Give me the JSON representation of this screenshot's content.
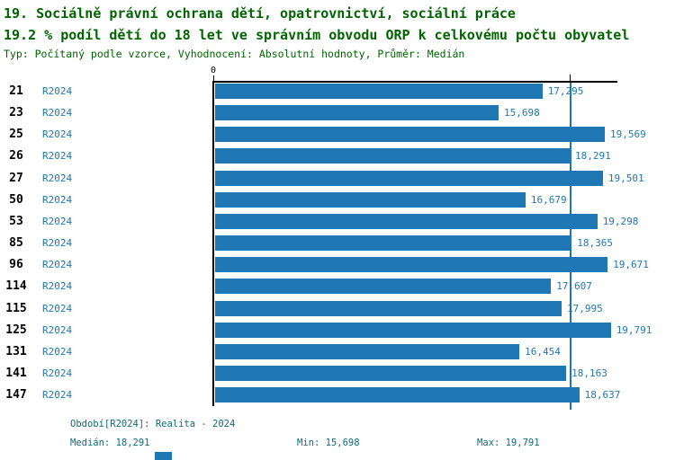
{
  "header": {
    "title": "19. Sociálně právní ochrana dětí, opatrovnictví, sociální práce",
    "subtitle": "19.2 % podíl dětí do 18 let ve správním obvodu ORP k celkovému počtu obyvatel",
    "meta": "Typ: Počítaný podle vzorce, Vyhodnocení: Absolutní hodnoty, Průměr: Medián"
  },
  "chart_data": {
    "type": "bar",
    "orientation": "horizontal",
    "title": "19. Sociálně právní ochrana dětí, opatrovnictví, sociální práce",
    "subtitle": "19.2 % podíl dětí do 18 let ve správním obvodu ORP k celkovému počtu obyvatel",
    "categories": [
      "21",
      "23",
      "25",
      "26",
      "27",
      "50",
      "53",
      "85",
      "96",
      "114",
      "115",
      "125",
      "131",
      "141",
      "147"
    ],
    "series_label": "R2024",
    "values": [
      17295,
      15698,
      19569,
      18291,
      19501,
      16679,
      19298,
      18365,
      19671,
      17607,
      17995,
      19791,
      16454,
      18163,
      18637
    ],
    "value_labels": [
      "17,295",
      "15,698",
      "19,569",
      "18,291",
      "19,501",
      "16,679",
      "19,298",
      "18,365",
      "19,671",
      "17,607",
      "17,995",
      "19,791",
      "16,454",
      "18,163",
      "18,637"
    ],
    "axis_zero_label": "0",
    "median_value": 18291,
    "min_value": 15698,
    "max_value": 19791,
    "xlim": [
      5359,
      20292
    ],
    "grid": false,
    "legend_position": "none",
    "bar_color": "#1f77b4",
    "label_color": "#1f77b4",
    "title_color": "#006400",
    "footer_color": "#0e6b7e"
  },
  "footer": {
    "period": "Období[R2024]: Realita - 2024",
    "median": "Medián: 18,291",
    "min": "Min: 15,698",
    "max": "Max: 19,791"
  }
}
